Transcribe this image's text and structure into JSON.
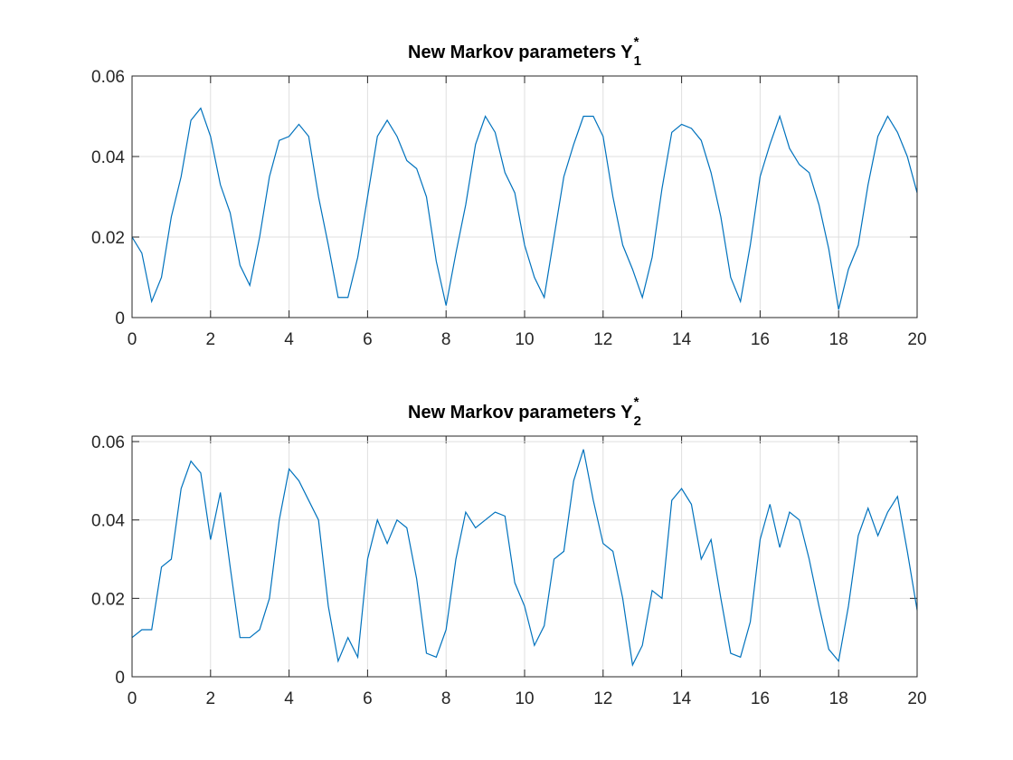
{
  "chart_data": [
    {
      "type": "line",
      "title": "New Markov parameters Y",
      "title_subscript": "1",
      "title_superscript": "*",
      "x": [
        0,
        0.25,
        0.5,
        0.75,
        1,
        1.25,
        1.5,
        1.75,
        2,
        2.25,
        2.5,
        2.75,
        3,
        3.25,
        3.5,
        3.75,
        4,
        4.25,
        4.5,
        4.75,
        5,
        5.25,
        5.5,
        5.75,
        6,
        6.25,
        6.5,
        6.75,
        7,
        7.25,
        7.5,
        7.75,
        8,
        8.25,
        8.5,
        8.75,
        9,
        9.25,
        9.5,
        9.75,
        10,
        10.25,
        10.5,
        10.75,
        11,
        11.25,
        11.5,
        11.75,
        12,
        12.25,
        12.5,
        12.75,
        13,
        13.25,
        13.5,
        13.75,
        14,
        14.25,
        14.5,
        14.75,
        15,
        15.25,
        15.5,
        15.75,
        16,
        16.25,
        16.5,
        16.75,
        17,
        17.25,
        17.5,
        17.75,
        18,
        18.25,
        18.5,
        18.75,
        19,
        19.25,
        19.5,
        19.75,
        20
      ],
      "series": [
        {
          "color": "#0072bd",
          "values": [
            0.02,
            0.016,
            0.004,
            0.01,
            0.025,
            0.035,
            0.049,
            0.052,
            0.045,
            0.033,
            0.026,
            0.013,
            0.008,
            0.02,
            0.035,
            0.044,
            0.045,
            0.048,
            0.045,
            0.03,
            0.018,
            0.005,
            0.005,
            0.015,
            0.03,
            0.045,
            0.049,
            0.045,
            0.039,
            0.037,
            0.03,
            0.014,
            0.003,
            0.016,
            0.028,
            0.043,
            0.05,
            0.046,
            0.036,
            0.031,
            0.018,
            0.01,
            0.005,
            0.02,
            0.035,
            0.043,
            0.05,
            0.05,
            0.045,
            0.03,
            0.018,
            0.012,
            0.005,
            0.015,
            0.032,
            0.046,
            0.048,
            0.047,
            0.044,
            0.036,
            0.025,
            0.01,
            0.004,
            0.018,
            0.035,
            0.043,
            0.05,
            0.042,
            0.038,
            0.036,
            0.028,
            0.017,
            0.002,
            0.012,
            0.018,
            0.033,
            0.045,
            0.05,
            0.046,
            0.04,
            0.031
          ]
        }
      ],
      "xlim": [
        0,
        20
      ],
      "xticks": [
        0,
        2,
        4,
        6,
        8,
        10,
        12,
        14,
        16,
        18,
        20
      ],
      "ylim": [
        0,
        0.06
      ],
      "yticks": [
        0,
        0.02,
        0.04,
        0.06
      ],
      "grid": true
    },
    {
      "type": "line",
      "title": "New Markov parameters Y",
      "title_subscript": "2",
      "title_superscript": "*",
      "x": [
        0,
        0.25,
        0.5,
        0.75,
        1,
        1.25,
        1.5,
        1.75,
        2,
        2.25,
        2.5,
        2.75,
        3,
        3.25,
        3.5,
        3.75,
        4,
        4.25,
        4.5,
        4.75,
        5,
        5.25,
        5.5,
        5.75,
        6,
        6.25,
        6.5,
        6.75,
        7,
        7.25,
        7.5,
        7.75,
        8,
        8.25,
        8.5,
        8.75,
        9,
        9.25,
        9.5,
        9.75,
        10,
        10.25,
        10.5,
        10.75,
        11,
        11.25,
        11.5,
        11.75,
        12,
        12.25,
        12.5,
        12.75,
        13,
        13.25,
        13.5,
        13.75,
        14,
        14.25,
        14.5,
        14.75,
        15,
        15.25,
        15.5,
        15.75,
        16,
        16.25,
        16.5,
        16.75,
        17,
        17.25,
        17.5,
        17.75,
        18,
        18.25,
        18.5,
        18.75,
        19,
        19.25,
        19.5,
        19.75,
        20
      ],
      "series": [
        {
          "color": "#0072bd",
          "values": [
            0.01,
            0.012,
            0.012,
            0.028,
            0.03,
            0.048,
            0.055,
            0.052,
            0.035,
            0.047,
            0.028,
            0.01,
            0.01,
            0.012,
            0.02,
            0.04,
            0.053,
            0.05,
            0.045,
            0.04,
            0.018,
            0.004,
            0.01,
            0.005,
            0.03,
            0.04,
            0.034,
            0.04,
            0.038,
            0.025,
            0.006,
            0.005,
            0.012,
            0.03,
            0.042,
            0.038,
            0.04,
            0.042,
            0.041,
            0.024,
            0.018,
            0.008,
            0.013,
            0.03,
            0.032,
            0.05,
            0.058,
            0.045,
            0.034,
            0.032,
            0.02,
            0.003,
            0.008,
            0.022,
            0.02,
            0.045,
            0.048,
            0.044,
            0.03,
            0.035,
            0.02,
            0.006,
            0.005,
            0.014,
            0.035,
            0.044,
            0.033,
            0.042,
            0.04,
            0.03,
            0.018,
            0.007,
            0.004,
            0.018,
            0.036,
            0.043,
            0.036,
            0.042,
            0.046,
            0.032,
            0.017
          ]
        }
      ],
      "xlim": [
        0,
        20
      ],
      "xticks": [
        0,
        2,
        4,
        6,
        8,
        10,
        12,
        14,
        16,
        18,
        20
      ],
      "ylim": [
        0,
        0.0614
      ],
      "yticks": [
        0,
        0.02,
        0.04,
        0.06
      ],
      "grid": true
    }
  ]
}
